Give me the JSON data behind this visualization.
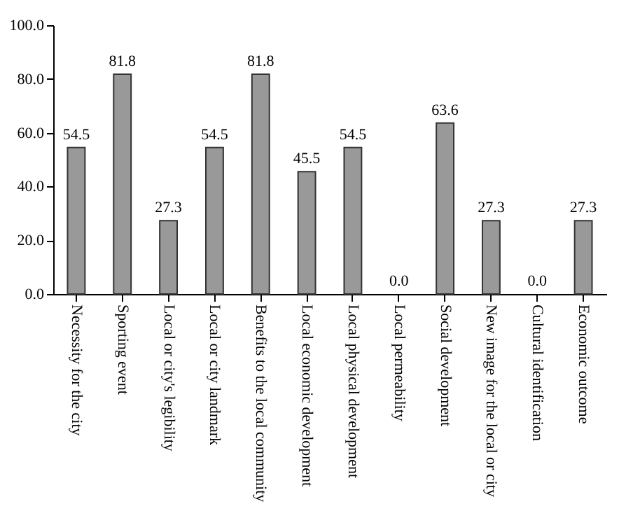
{
  "chart_data": {
    "type": "bar",
    "categories": [
      "Necessity for the city",
      "Sporting event",
      "Local or city's legibility",
      "Local or city landmark",
      "Benefits to the local community",
      "Local economic development",
      "Local physical development",
      "Local permeability",
      "Social development",
      "New image for the local or city",
      "Cultural identification",
      "Economic outcome"
    ],
    "values": [
      54.5,
      81.8,
      27.3,
      54.5,
      81.8,
      45.5,
      54.5,
      0,
      63.6,
      27.3,
      0,
      27.3
    ],
    "value_labels": [
      "54.5",
      "81.8",
      "27.3",
      "54.5",
      "81.8",
      "45.5",
      "54.5",
      "0.0",
      "63.6",
      "27.3",
      "0.0",
      "27.3"
    ],
    "color": "#999999",
    "ylim": [
      0,
      100
    ],
    "yticks": [
      {
        "value": 0,
        "label": "0.0"
      },
      {
        "value": 20,
        "label": "20.0"
      },
      {
        "value": 40,
        "label": "40.0"
      },
      {
        "value": 60,
        "label": "60.0"
      },
      {
        "value": 80,
        "label": "80.0"
      },
      {
        "value": 100,
        "label": "100.0"
      }
    ],
    "grid": false
  }
}
